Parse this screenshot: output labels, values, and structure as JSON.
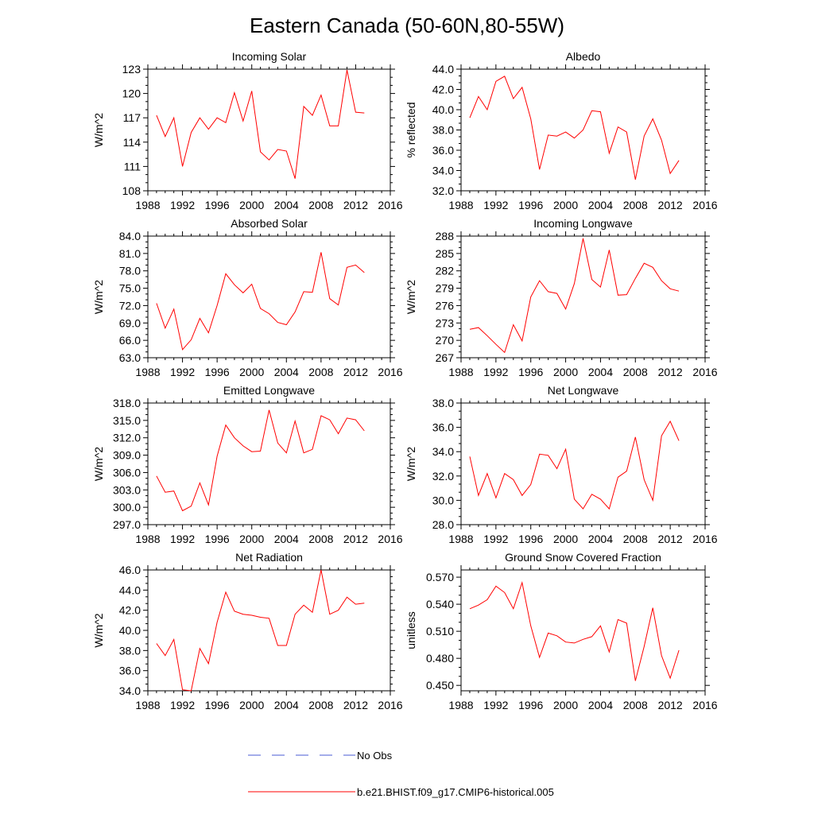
{
  "figure": {
    "title": "Eastern Canada (50-60N,80-55W)",
    "series_color": "#ff0000",
    "obs_color": "#4a5bd4"
  },
  "legend": {
    "items": [
      {
        "label": "No Obs",
        "style": "dashed",
        "color": "#4a5bd4"
      },
      {
        "label": "b.e21.BHIST.f09_g17.CMIP6-historical.005",
        "style": "solid",
        "color": "#ff0000"
      }
    ]
  },
  "chart_data": [
    {
      "type": "line",
      "title": "Incoming Solar",
      "ylabel": "W/m^2",
      "xlim": [
        1988,
        2016
      ],
      "xticks": [
        "1988",
        "1992",
        "1996",
        "2000",
        "2004",
        "2008",
        "2012",
        "2016"
      ],
      "ylim": [
        108,
        123
      ],
      "yticks": [
        "108",
        "111",
        "114",
        "117",
        "120",
        "123"
      ],
      "series": [
        {
          "name": "b.e21.BHIST.f09_g17.CMIP6-historical.005",
          "x": [
            1989,
            1990,
            1991,
            1992,
            1993,
            1994,
            1995,
            1996,
            1997,
            1998,
            1999,
            2000,
            2001,
            2002,
            2003,
            2004,
            2005,
            2006,
            2007,
            2008,
            2009,
            2010,
            2011,
            2012,
            2013
          ],
          "values": [
            117.3,
            114.7,
            117.0,
            111.0,
            115.2,
            117.0,
            115.6,
            117.0,
            116.4,
            120.1,
            116.6,
            120.3,
            112.8,
            111.8,
            113.1,
            112.9,
            109.5,
            118.4,
            117.3,
            119.8,
            116.0,
            116.0,
            122.9,
            117.7,
            117.6
          ]
        }
      ]
    },
    {
      "type": "line",
      "title": "Albedo",
      "ylabel": "% reflected",
      "xlim": [
        1988,
        2016
      ],
      "xticks": [
        "1988",
        "1992",
        "1996",
        "2000",
        "2004",
        "2008",
        "2012",
        "2016"
      ],
      "ylim": [
        32.0,
        44.0
      ],
      "yticks": [
        "32.0",
        "34.0",
        "36.0",
        "38.0",
        "40.0",
        "42.0",
        "44.0"
      ],
      "series": [
        {
          "name": "b.e21.BHIST.f09_g17.CMIP6-historical.005",
          "x": [
            1989,
            1990,
            1991,
            1992,
            1993,
            1994,
            1995,
            1996,
            1997,
            1998,
            1999,
            2000,
            2001,
            2002,
            2003,
            2004,
            2005,
            2006,
            2007,
            2008,
            2009,
            2010,
            2011,
            2012,
            2013
          ],
          "values": [
            39.2,
            41.3,
            40.0,
            42.8,
            43.3,
            41.1,
            42.2,
            39.1,
            34.1,
            37.5,
            37.4,
            37.8,
            37.2,
            38.0,
            39.9,
            39.8,
            35.7,
            38.3,
            37.8,
            33.1,
            37.4,
            39.1,
            37.0,
            33.7,
            35.0
          ]
        }
      ]
    },
    {
      "type": "line",
      "title": "Absorbed Solar",
      "ylabel": "W/m^2",
      "xlim": [
        1988,
        2016
      ],
      "xticks": [
        "1988",
        "1992",
        "1996",
        "2000",
        "2004",
        "2008",
        "2012",
        "2016"
      ],
      "ylim": [
        63.0,
        84.0
      ],
      "yticks": [
        "63.0",
        "66.0",
        "69.0",
        "72.0",
        "75.0",
        "78.0",
        "81.0",
        "84.0"
      ],
      "series": [
        {
          "name": "b.e21.BHIST.f09_g17.CMIP6-historical.005",
          "x": [
            1989,
            1990,
            1991,
            1992,
            1993,
            1994,
            1995,
            1996,
            1997,
            1998,
            1999,
            2000,
            2001,
            2002,
            2003,
            2004,
            2005,
            2006,
            2007,
            2008,
            2009,
            2010,
            2011,
            2012,
            2013
          ],
          "values": [
            72.4,
            68.1,
            71.4,
            64.4,
            66.1,
            69.8,
            67.3,
            72.0,
            77.5,
            75.6,
            74.2,
            75.7,
            71.5,
            70.6,
            69.1,
            68.7,
            70.9,
            74.4,
            74.3,
            81.2,
            73.2,
            72.1,
            78.6,
            79.0,
            77.7
          ]
        }
      ]
    },
    {
      "type": "line",
      "title": "Incoming Longwave",
      "ylabel": "W/m^2",
      "xlim": [
        1988,
        2016
      ],
      "xticks": [
        "1988",
        "1992",
        "1996",
        "2000",
        "2004",
        "2008",
        "2012",
        "2016"
      ],
      "ylim": [
        267,
        288
      ],
      "yticks": [
        "267",
        "270",
        "273",
        "276",
        "279",
        "282",
        "285",
        "288"
      ],
      "series": [
        {
          "name": "b.e21.BHIST.f09_g17.CMIP6-historical.005",
          "x": [
            1989,
            1990,
            1991,
            1992,
            1993,
            1994,
            1995,
            1996,
            1997,
            1998,
            1999,
            2000,
            2001,
            2002,
            2003,
            2004,
            2005,
            2006,
            2007,
            2008,
            2009,
            2010,
            2011,
            2012,
            2013
          ],
          "values": [
            271.9,
            272.2,
            270.8,
            269.3,
            267.9,
            272.7,
            269.9,
            277.5,
            280.3,
            278.4,
            278.1,
            275.4,
            279.8,
            287.6,
            280.5,
            279.2,
            285.6,
            277.8,
            277.9,
            280.7,
            283.3,
            282.6,
            280.3,
            278.9,
            278.5
          ]
        }
      ]
    },
    {
      "type": "line",
      "title": "Emitted Longwave",
      "ylabel": "W/m^2",
      "xlim": [
        1988,
        2016
      ],
      "xticks": [
        "1988",
        "1992",
        "1996",
        "2000",
        "2004",
        "2008",
        "2012",
        "2016"
      ],
      "ylim": [
        297.0,
        318.0
      ],
      "yticks": [
        "297.0",
        "300.0",
        "303.0",
        "306.0",
        "309.0",
        "312.0",
        "315.0",
        "318.0"
      ],
      "series": [
        {
          "name": "b.e21.BHIST.f09_g17.CMIP6-historical.005",
          "x": [
            1989,
            1990,
            1991,
            1992,
            1993,
            1994,
            1995,
            1996,
            1997,
            1998,
            1999,
            2000,
            2001,
            2002,
            2003,
            2004,
            2005,
            2006,
            2007,
            2008,
            2009,
            2010,
            2011,
            2012,
            2013
          ],
          "values": [
            305.4,
            302.6,
            302.8,
            299.4,
            300.2,
            304.2,
            300.4,
            308.8,
            314.2,
            312.0,
            310.6,
            309.6,
            309.7,
            316.8,
            311.1,
            309.4,
            314.9,
            309.4,
            310.0,
            315.8,
            315.1,
            312.7,
            315.4,
            315.1,
            313.2
          ]
        }
      ]
    },
    {
      "type": "line",
      "title": "Net Longwave",
      "ylabel": "W/m^2",
      "xlim": [
        1988,
        2016
      ],
      "xticks": [
        "1988",
        "1992",
        "1996",
        "2000",
        "2004",
        "2008",
        "2012",
        "2016"
      ],
      "ylim": [
        28.0,
        38.0
      ],
      "yticks": [
        "28.0",
        "30.0",
        "32.0",
        "34.0",
        "36.0",
        "38.0"
      ],
      "series": [
        {
          "name": "b.e21.BHIST.f09_g17.CMIP6-historical.005",
          "x": [
            1989,
            1990,
            1991,
            1992,
            1993,
            1994,
            1995,
            1996,
            1997,
            1998,
            1999,
            2000,
            2001,
            2002,
            2003,
            2004,
            2005,
            2006,
            2007,
            2008,
            2009,
            2010,
            2011,
            2012,
            2013
          ],
          "values": [
            33.6,
            30.4,
            32.2,
            30.2,
            32.2,
            31.7,
            30.4,
            31.3,
            33.8,
            33.7,
            32.6,
            34.2,
            30.1,
            29.3,
            30.5,
            30.1,
            29.3,
            31.9,
            32.4,
            35.2,
            31.7,
            30.0,
            35.3,
            36.5,
            34.9
          ]
        }
      ]
    },
    {
      "type": "line",
      "title": "Net Radiation",
      "ylabel": "W/m^2",
      "xlim": [
        1988,
        2016
      ],
      "xticks": [
        "1988",
        "1992",
        "1996",
        "2000",
        "2004",
        "2008",
        "2012",
        "2016"
      ],
      "ylim": [
        34.0,
        46.0
      ],
      "yticks": [
        "34.0",
        "36.0",
        "38.0",
        "40.0",
        "42.0",
        "44.0",
        "46.0"
      ],
      "series": [
        {
          "name": "b.e21.BHIST.f09_g17.CMIP6-historical.005",
          "x": [
            1989,
            1990,
            1991,
            1992,
            1993,
            1994,
            1995,
            1996,
            1997,
            1998,
            1999,
            2000,
            2001,
            2002,
            2003,
            2004,
            2005,
            2006,
            2007,
            2008,
            2009,
            2010,
            2011,
            2012,
            2013
          ],
          "values": [
            38.7,
            37.5,
            39.1,
            34.1,
            34.0,
            38.2,
            36.7,
            40.8,
            43.8,
            41.9,
            41.6,
            41.5,
            41.3,
            41.2,
            38.5,
            38.5,
            41.6,
            42.5,
            41.8,
            46.0,
            41.6,
            42.0,
            43.3,
            42.6,
            42.7
          ]
        }
      ]
    },
    {
      "type": "line",
      "title": "Ground Snow Covered Fraction",
      "ylabel": "unitless",
      "xlim": [
        1988,
        2016
      ],
      "xticks": [
        "1988",
        "1992",
        "1996",
        "2000",
        "2004",
        "2008",
        "2012",
        "2016"
      ],
      "ylim": [
        0.444,
        0.578
      ],
      "yticks": [
        "0.450",
        "0.480",
        "0.510",
        "0.540",
        "0.570"
      ],
      "series": [
        {
          "name": "b.e21.BHIST.f09_g17.CMIP6-historical.005",
          "x": [
            1989,
            1990,
            1991,
            1992,
            1993,
            1994,
            1995,
            1996,
            1997,
            1998,
            1999,
            2000,
            2001,
            2002,
            2003,
            2004,
            2005,
            2006,
            2007,
            2008,
            2009,
            2010,
            2011,
            2012,
            2013
          ],
          "values": [
            0.535,
            0.539,
            0.545,
            0.56,
            0.553,
            0.535,
            0.564,
            0.516,
            0.481,
            0.508,
            0.505,
            0.498,
            0.497,
            0.501,
            0.504,
            0.516,
            0.487,
            0.523,
            0.519,
            0.455,
            0.493,
            0.536,
            0.483,
            0.458,
            0.489
          ]
        }
      ]
    }
  ]
}
